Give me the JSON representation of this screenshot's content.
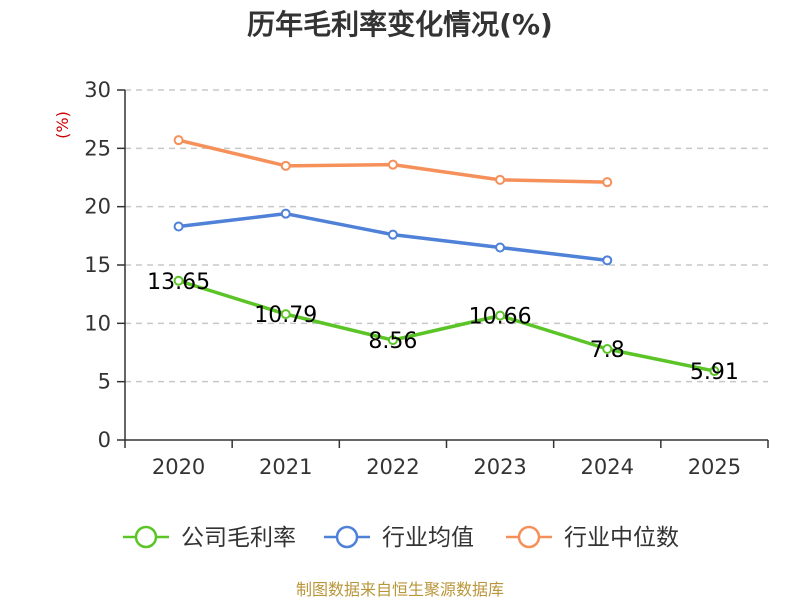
{
  "chart_data": {
    "type": "line",
    "title": "历年毛利率变化情况(%)",
    "ylabel": "(%)",
    "xlabel": "",
    "categories": [
      "2020",
      "2021",
      "2022",
      "2023",
      "2024",
      "2025"
    ],
    "ylim": [
      0,
      30
    ],
    "yticks": [
      0,
      5,
      10,
      15,
      20,
      25,
      30
    ],
    "grid": true,
    "legend_position": "bottom",
    "series": [
      {
        "name": "公司毛利率",
        "color": "#5bc426",
        "values": [
          13.65,
          10.79,
          8.56,
          10.66,
          7.8,
          5.91
        ],
        "labels": [
          "13.65",
          "10.79",
          "8.56",
          "10.66",
          "7.8",
          "5.91"
        ]
      },
      {
        "name": "行业均值",
        "color": "#4f81d8",
        "values": [
          18.3,
          19.4,
          17.6,
          16.5,
          15.4,
          null
        ]
      },
      {
        "name": "行业中位数",
        "color": "#f5905a",
        "values": [
          25.7,
          23.5,
          23.6,
          22.3,
          22.1,
          null
        ]
      }
    ]
  },
  "footer": "制图数据来自恒生聚源数据库"
}
